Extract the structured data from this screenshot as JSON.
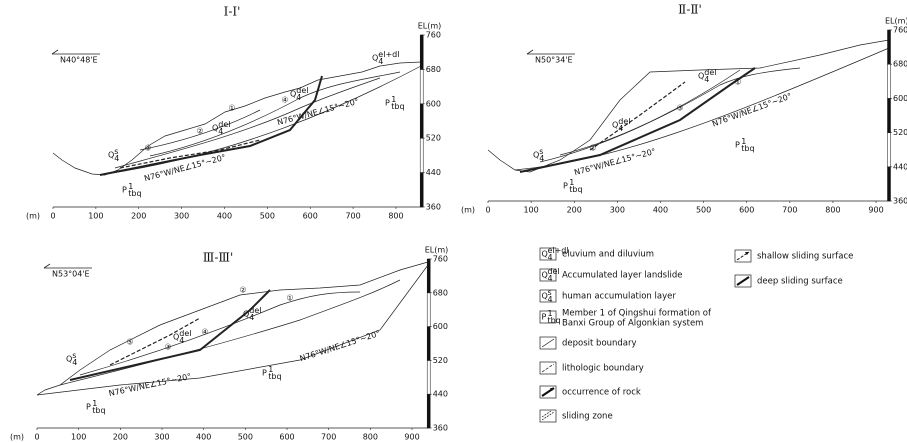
{
  "sections": [
    {
      "title": "Ⅰ-Ⅰ'",
      "orientation": "N40°48'E",
      "x_axis_label": "(m)",
      "y_axis_label": "EL(m)",
      "xlim": [
        0,
        860
      ],
      "xticks": [
        0,
        100,
        200,
        300,
        400,
        500,
        600,
        700,
        800
      ],
      "ylim": [
        360,
        760
      ],
      "yticks": [
        360,
        440,
        520,
        600,
        680,
        760
      ],
      "dip_labels": [
        "N76°W/NE∠15°~20°",
        "N76°W/NE∠15°~20°"
      ],
      "units": [
        {
          "base": "Q",
          "sub": "4",
          "sup": "el+dl"
        },
        {
          "base": "Q",
          "sub": "4",
          "sup": "del"
        },
        {
          "base": "Q",
          "sub": "4",
          "sup": "del"
        },
        {
          "base": "Q",
          "sub": "4",
          "sup": "s"
        },
        {
          "base": "P",
          "sub": "tbq",
          "sup": "1"
        },
        {
          "base": "P",
          "sub": "tbq",
          "sup": "1"
        }
      ],
      "circled": [
        "①",
        "②",
        "③",
        "④"
      ]
    },
    {
      "title": "Ⅱ-Ⅱ'",
      "orientation": "N50°34'E",
      "x_axis_label": "(m)",
      "y_axis_label": "EL(m)",
      "xlim": [
        0,
        930
      ],
      "xticks": [
        0,
        100,
        200,
        300,
        400,
        500,
        600,
        700,
        800,
        900
      ],
      "ylim": [
        360,
        760
      ],
      "yticks": [
        360,
        440,
        520,
        600,
        680,
        760
      ],
      "dip_labels": [
        "N76°W/NE∠15°~20°",
        "N76°W/NE∠15°~20°"
      ],
      "units": [
        {
          "base": "Q",
          "sub": "4",
          "sup": "del"
        },
        {
          "base": "Q",
          "sub": "4",
          "sup": "del"
        },
        {
          "base": "Q",
          "sub": "4",
          "sup": "s"
        },
        {
          "base": "P",
          "sub": "tbq",
          "sup": "1"
        },
        {
          "base": "P",
          "sub": "tbq",
          "sup": "1"
        }
      ],
      "circled": [
        "①",
        "②",
        "③"
      ]
    },
    {
      "title": "Ⅲ-Ⅲ'",
      "orientation": "N53°04'E",
      "x_axis_label": "(m)",
      "y_axis_label": "EL(m)",
      "xlim": [
        0,
        940
      ],
      "xticks": [
        0,
        100,
        200,
        300,
        400,
        500,
        600,
        700,
        800,
        900
      ],
      "ylim": [
        360,
        760
      ],
      "yticks": [
        360,
        440,
        520,
        600,
        680,
        760
      ],
      "dip_labels": [
        "N76°W/NE∠15°~20°",
        "N76°W/NE∠15°~20°"
      ],
      "units": [
        {
          "base": "Q",
          "sub": "4",
          "sup": "del"
        },
        {
          "base": "Q",
          "sub": "4",
          "sup": "del"
        },
        {
          "base": "Q",
          "sub": "4",
          "sup": "s"
        },
        {
          "base": "P",
          "sub": "tbq",
          "sup": "1"
        },
        {
          "base": "P",
          "sub": "tbq",
          "sup": "1"
        }
      ],
      "circled": [
        "①",
        "②",
        "③",
        "④",
        "⑤"
      ]
    }
  ],
  "legend": [
    {
      "symbol": {
        "base": "Q",
        "sub": "4",
        "sup": "el+dl"
      },
      "label": "eluvium and diluvium"
    },
    {
      "symbol": {
        "base": "Q",
        "sub": "4",
        "sup": "del"
      },
      "label": "Accumulated layer landslide"
    },
    {
      "symbol": {
        "base": "Q",
        "sub": "4",
        "sup": "s"
      },
      "label": "human accumulation layer"
    },
    {
      "symbol": {
        "base": "P",
        "sub": "tbq",
        "sup": "1"
      },
      "label": [
        "Member 1 of Qingshui formation of",
        "Banxi Group of Algonkian system"
      ]
    },
    {
      "label": "deposit boundary"
    },
    {
      "label": "lithologic boundary"
    },
    {
      "label": "occurrence of rock"
    },
    {
      "label": "sliding zone"
    },
    {
      "label": "shallow sliding surface"
    },
    {
      "label": "deep sliding surface"
    }
  ]
}
